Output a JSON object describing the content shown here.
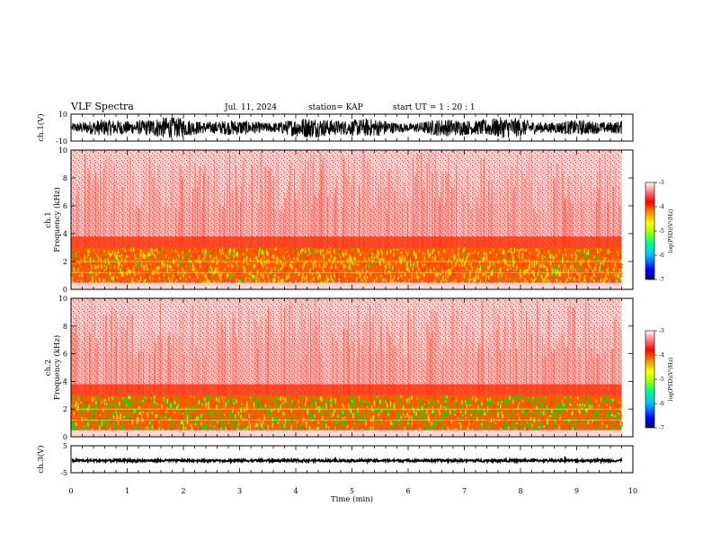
{
  "header": {
    "title": "VLF Spectra",
    "date": "Jul. 11, 2024",
    "station": "station= KAP",
    "start": "start UT =  1 : 20 : 1"
  },
  "colors": {
    "spectrum_low": "#ffffff",
    "spectrum_mid": "#ff2a00",
    "spectrum_yellow": "#e8e000",
    "spectrum_green": "#00e000",
    "trace": "#000000",
    "colorbar": [
      "#000080",
      "#0000ff",
      "#00c0ff",
      "#00ff80",
      "#a0ff00",
      "#ffff00",
      "#ff8000",
      "#ff0000",
      "#ff8080",
      "#ffffff"
    ]
  },
  "chart_data": [
    {
      "panel": "ch1-waveform",
      "type": "line",
      "ylabel": "ch.1(V)",
      "ylim": [
        -10,
        10
      ],
      "yticks": [
        "10",
        "-10"
      ],
      "xlim": [
        0,
        10
      ],
      "description_values": {
        "typical_range_V": [
          -8,
          8
        ]
      }
    },
    {
      "panel": "ch1-spectrogram",
      "type": "heatmap",
      "ylabel": "ch.1\nFrequency (kHz)",
      "ylim": [
        0,
        10
      ],
      "yticks": [
        "0",
        "2",
        "4",
        "6",
        "8",
        "10"
      ],
      "xlim": [
        0,
        10
      ],
      "data_end_min": 9.8,
      "intense_band_kHz": [
        0.5,
        3.0
      ],
      "colorbar": {
        "label": "log(PSD)(V²/Hz)",
        "range": [
          -7,
          -3
        ],
        "ticks": [
          "-3",
          "-4",
          "-5",
          "-6",
          "-7"
        ]
      }
    },
    {
      "panel": "ch2-spectrogram",
      "type": "heatmap",
      "ylabel": "ch.2\nFrequency (kHz)",
      "ylim": [
        0,
        10
      ],
      "yticks": [
        "0",
        "2",
        "4",
        "6",
        "8",
        "10"
      ],
      "xlim": [
        0,
        10
      ],
      "data_end_min": 9.8,
      "intense_band_kHz": [
        0.5,
        3.0
      ],
      "colorbar": {
        "label": "log(PSD)(V²/Hz)",
        "range": [
          -7,
          -3
        ],
        "ticks": [
          "-3",
          "-4",
          "-5",
          "-6",
          "-7"
        ]
      }
    },
    {
      "panel": "ch3-waveform",
      "type": "line",
      "ylabel": "ch.3(V)",
      "ylim": [
        -5,
        5
      ],
      "yticks": [
        "5",
        "-5"
      ],
      "xlim": [
        0,
        10
      ],
      "description_values": {
        "typical_level_V": -0.5
      }
    }
  ],
  "xaxis": {
    "label": "Time (min)",
    "ticks": [
      "0",
      "1",
      "2",
      "3",
      "4",
      "5",
      "6",
      "7",
      "8",
      "9",
      "10"
    ]
  }
}
